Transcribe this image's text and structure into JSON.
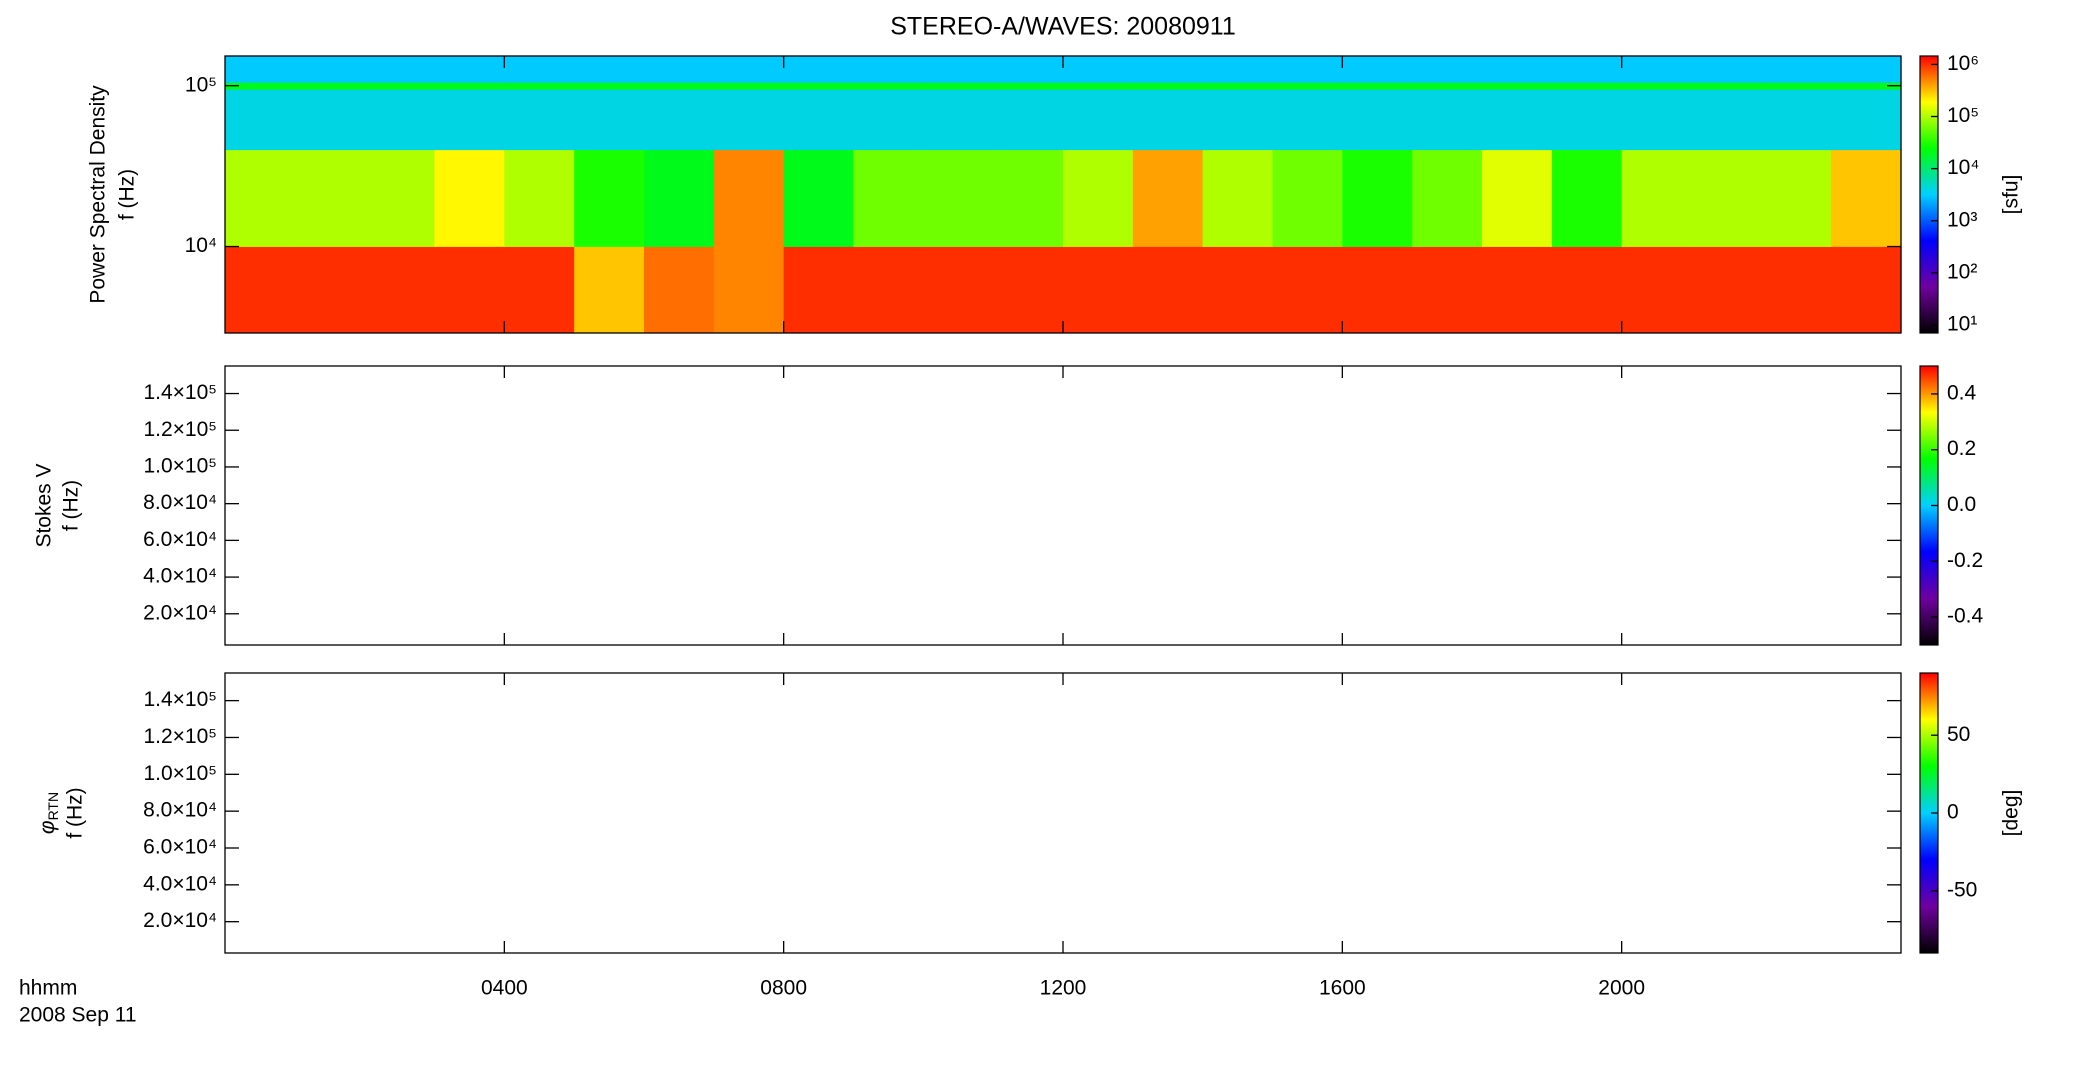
{
  "chart_data": [
    {
      "type": "heatmap",
      "title": "STEREO-A/WAVES: 20080911",
      "ylabel": [
        "Power Spectral Density",
        "f (Hz)"
      ],
      "ylim": [
        2900,
        153000
      ],
      "ylog": true,
      "yticks": [
        {
          "value": 10000,
          "label": "10⁴"
        },
        {
          "value": 100000,
          "label": "10⁵"
        }
      ],
      "x_edges": [
        0,
        1,
        2,
        3,
        4,
        5,
        6,
        7,
        8,
        9,
        10,
        11,
        12,
        13,
        14,
        15,
        16,
        17,
        18,
        19,
        20,
        21,
        22,
        23,
        24
      ],
      "y_edges": [
        2900,
        10000,
        40000,
        95000,
        105000,
        153000
      ],
      "z": [
        [
          1000000,
          1000000,
          1000000,
          1000000,
          1000000,
          300000,
          600000,
          500000,
          1000000,
          1000000,
          1000000,
          1000000,
          1000000,
          1000000,
          1000000,
          1000000,
          1000000,
          1000000,
          1000000,
          1000000,
          1000000,
          1000000,
          1000000,
          1000000
        ],
        [
          100000,
          100000,
          100000,
          200000,
          100000,
          30000,
          20000,
          500000,
          20000,
          60000,
          60000,
          60000,
          100000,
          400000,
          100000,
          60000,
          30000,
          60000,
          150000,
          30000,
          100000,
          100000,
          100000,
          300000
        ],
        [
          4000,
          4000,
          4000,
          4000,
          4000,
          4000,
          4000,
          4000,
          4000,
          4000,
          4000,
          4000,
          4000,
          4000,
          4000,
          4000,
          4000,
          4000,
          4000,
          4000,
          4000,
          4000,
          4000,
          4000
        ],
        [
          20000,
          20000,
          20000,
          20000,
          20000,
          20000,
          20000,
          20000,
          20000,
          20000,
          20000,
          20000,
          20000,
          20000,
          20000,
          20000,
          20000,
          20000,
          20000,
          20000,
          20000,
          20000,
          20000,
          20000
        ],
        [
          3000,
          3000,
          3000,
          3000,
          3000,
          3000,
          3000,
          3000,
          3000,
          3000,
          3000,
          3000,
          3000,
          3000,
          3000,
          3000,
          3000,
          3000,
          3000,
          3000,
          3000,
          3000,
          3000,
          3000
        ]
      ],
      "clim": [
        7,
        1450000
      ],
      "clog": true,
      "cticks": [
        {
          "value": 10,
          "label": "10¹"
        },
        {
          "value": 100,
          "label": "10²"
        },
        {
          "value": 1000,
          "label": "10³"
        },
        {
          "value": 10000,
          "label": "10⁴"
        },
        {
          "value": 100000,
          "label": "10⁵"
        },
        {
          "value": 1000000,
          "label": "10⁶"
        }
      ],
      "clabel": "[sfu]",
      "colorscale": [
        "#000000",
        "#7000a0",
        "#0000ff",
        "#00d0ff",
        "#00ff00",
        "#ffff00",
        "#ff0000"
      ]
    },
    {
      "type": "heatmap",
      "ylabel": [
        "Stokes V",
        "f (Hz)"
      ],
      "ylim": [
        3000,
        155000
      ],
      "yticks": [
        {
          "value": 20000,
          "label": "2.0×10⁴"
        },
        {
          "value": 40000,
          "label": "4.0×10⁴"
        },
        {
          "value": 60000,
          "label": "6.0×10⁴"
        },
        {
          "value": 80000,
          "label": "8.0×10⁴"
        },
        {
          "value": 100000,
          "label": "1.0×10⁵"
        },
        {
          "value": 120000,
          "label": "1.2×10⁵"
        },
        {
          "value": 140000,
          "label": "1.4×10⁵"
        }
      ],
      "clim": [
        -0.5,
        0.5
      ],
      "cticks": [
        -0.4,
        -0.2,
        {
          "value": 0,
          "label": "0.0"
        },
        0.2,
        0.4
      ],
      "colorscale": [
        "#000000",
        "#7000a0",
        "#0000ff",
        "#00d0ff",
        "#00ff00",
        "#ffff00",
        "#ff0000"
      ]
    },
    {
      "type": "heatmap",
      "ylabel": [
        "φ",
        "f (Hz)"
      ],
      "ylabel_sub": "RTN",
      "ylim": [
        3000,
        155000
      ],
      "yticks": [
        {
          "value": 20000,
          "label": "2.0×10⁴"
        },
        {
          "value": 40000,
          "label": "4.0×10⁴"
        },
        {
          "value": 60000,
          "label": "6.0×10⁴"
        },
        {
          "value": 80000,
          "label": "8.0×10⁴"
        },
        {
          "value": 100000,
          "label": "1.0×10⁵"
        },
        {
          "value": 120000,
          "label": "1.2×10⁵"
        },
        {
          "value": 140000,
          "label": "1.4×10⁵"
        }
      ],
      "clim": [
        -90,
        90
      ],
      "cticks": [
        -50,
        0,
        50
      ],
      "clabel": "[deg]",
      "colorscale": [
        "#000000",
        "#7000a0",
        "#0000ff",
        "#00d0ff",
        "#00ff00",
        "#ffff00",
        "#ff0000"
      ],
      "xlim": [
        0,
        24
      ],
      "xticks": [
        {
          "value": 4,
          "label": "0400"
        },
        {
          "value": 8,
          "label": "0800"
        },
        {
          "value": 12,
          "label": "1200"
        },
        {
          "value": 16,
          "label": "1600"
        },
        {
          "value": 20,
          "label": "2000"
        }
      ],
      "xlabel": "hhmm",
      "date": "2008 Sep 11"
    }
  ]
}
